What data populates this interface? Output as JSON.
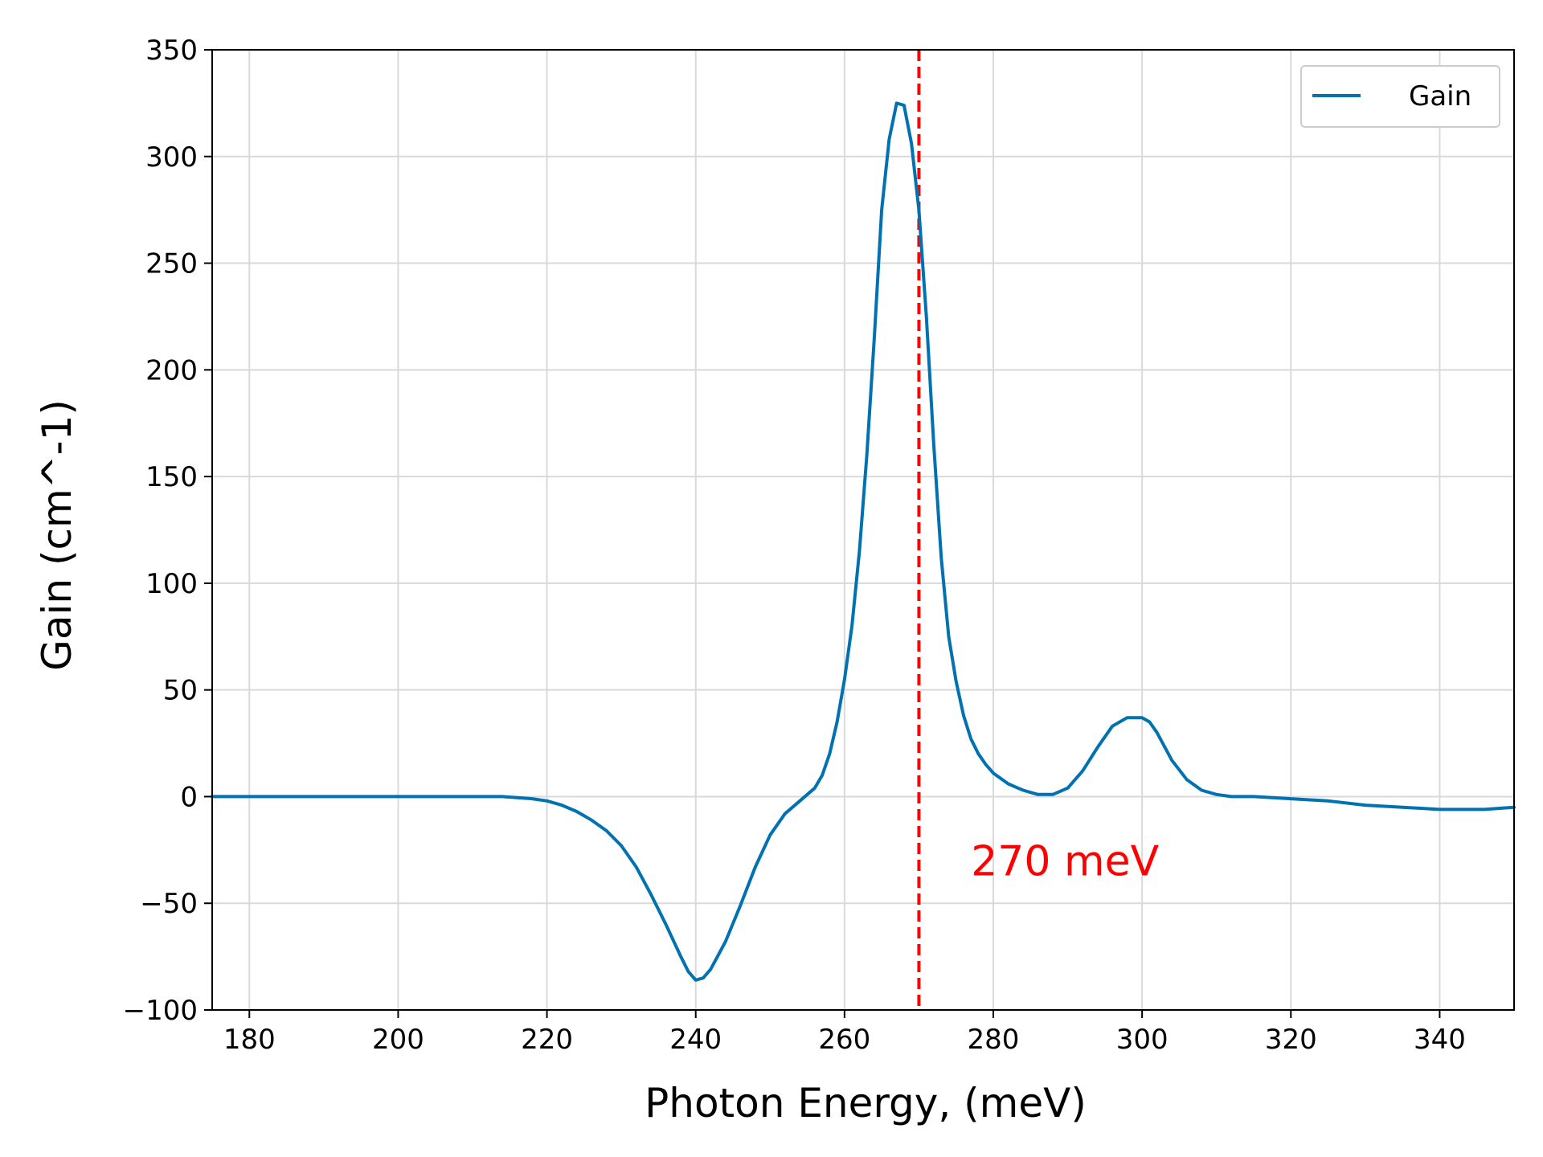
{
  "chart_data": {
    "type": "line",
    "title": "",
    "xlabel": "Photon Energy, (meV)",
    "ylabel": "Gain (cm^-1)",
    "xlim": [
      175,
      350
    ],
    "ylim": [
      -100,
      350
    ],
    "x_ticks": [
      180,
      200,
      220,
      240,
      260,
      280,
      300,
      320,
      340
    ],
    "y_ticks": [
      -100,
      -50,
      0,
      50,
      100,
      150,
      200,
      250,
      300,
      350
    ],
    "x_tick_labels": [
      "180",
      "200",
      "220",
      "240",
      "260",
      "280",
      "300",
      "320",
      "340"
    ],
    "y_tick_labels": [
      "−100",
      "−50",
      "0",
      "50",
      "100",
      "150",
      "200",
      "250",
      "300",
      "350"
    ],
    "grid": true,
    "legend": {
      "position": "top-right",
      "entries": [
        "Gain"
      ]
    },
    "series": [
      {
        "name": "Gain",
        "color": "#0072b2",
        "x": [
          175,
          180,
          190,
          200,
          210,
          214,
          218,
          220,
          222,
          224,
          226,
          228,
          230,
          232,
          234,
          236,
          238,
          239,
          240,
          241,
          242,
          244,
          246,
          248,
          250,
          252,
          254,
          256,
          257,
          258,
          259,
          260,
          261,
          262,
          263,
          264,
          265,
          266,
          267,
          268,
          269,
          270,
          271,
          272,
          273,
          274,
          275,
          276,
          277,
          278,
          279,
          280,
          282,
          284,
          286,
          288,
          290,
          292,
          294,
          296,
          298,
          300,
          301,
          302,
          304,
          306,
          308,
          310,
          312,
          315,
          320,
          325,
          330,
          335,
          340,
          343,
          346,
          350
        ],
        "y": [
          0,
          0,
          0,
          0,
          0,
          0,
          -1,
          -2,
          -4,
          -7,
          -11,
          -16,
          -23,
          -33,
          -46,
          -60,
          -75,
          -82,
          -86,
          -85,
          -81,
          -68,
          -51,
          -33,
          -18,
          -8,
          -2,
          4,
          10,
          20,
          35,
          55,
          80,
          115,
          160,
          215,
          275,
          308,
          325,
          324,
          306,
          275,
          225,
          165,
          112,
          75,
          54,
          38,
          27,
          20,
          15,
          11,
          6,
          3,
          1,
          1,
          4,
          12,
          23,
          33,
          37,
          37,
          35,
          30,
          17,
          8,
          3,
          1,
          0,
          0,
          -1,
          -2,
          -4,
          -5,
          -6,
          -6,
          -6,
          -5
        ]
      }
    ],
    "annotations": [
      {
        "type": "vline",
        "x": 270,
        "color": "#ff0000",
        "style": "dashed"
      },
      {
        "type": "text",
        "text": "270 meV",
        "x": 277,
        "y": -37,
        "color": "#ff0000"
      }
    ]
  }
}
